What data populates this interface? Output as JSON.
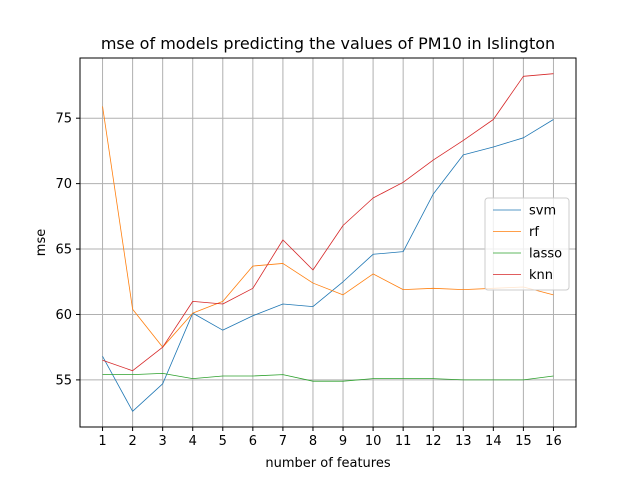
{
  "chart_data": {
    "type": "line",
    "title": "mse of models predicting the values of PM10 in Islington",
    "xlabel": "number of features",
    "ylabel": "mse",
    "x": [
      1,
      2,
      3,
      4,
      5,
      6,
      7,
      8,
      9,
      10,
      11,
      12,
      13,
      14,
      15,
      16
    ],
    "xlim": [
      0.25,
      16.75
    ],
    "ylim": [
      51.4,
      79.6
    ],
    "yticks": [
      55,
      60,
      65,
      70,
      75
    ],
    "grid": true,
    "legend_position": "center-right",
    "series": [
      {
        "name": "svm",
        "color": "#1f77b4",
        "values": [
          56.8,
          52.6,
          54.7,
          60.1,
          58.8,
          59.9,
          60.8,
          60.6,
          62.5,
          64.6,
          64.8,
          69.2,
          72.2,
          72.8,
          73.5,
          74.9
        ]
      },
      {
        "name": "rf",
        "color": "#ff7f0e",
        "values": [
          75.9,
          60.4,
          57.5,
          60.1,
          61.0,
          63.7,
          63.9,
          62.4,
          61.5,
          63.1,
          61.9,
          62.0,
          61.9,
          62.0,
          62.1,
          61.5
        ]
      },
      {
        "name": "lasso",
        "color": "#2ca02c",
        "values": [
          55.4,
          55.4,
          55.5,
          55.1,
          55.3,
          55.3,
          55.4,
          54.9,
          54.9,
          55.1,
          55.1,
          55.1,
          55.0,
          55.0,
          55.0,
          55.3
        ]
      },
      {
        "name": "knn",
        "color": "#d62728",
        "values": [
          56.5,
          55.7,
          57.5,
          61.0,
          60.8,
          62.0,
          65.7,
          63.4,
          66.8,
          68.9,
          70.1,
          71.8,
          73.3,
          74.9,
          78.2,
          78.4
        ]
      }
    ]
  }
}
